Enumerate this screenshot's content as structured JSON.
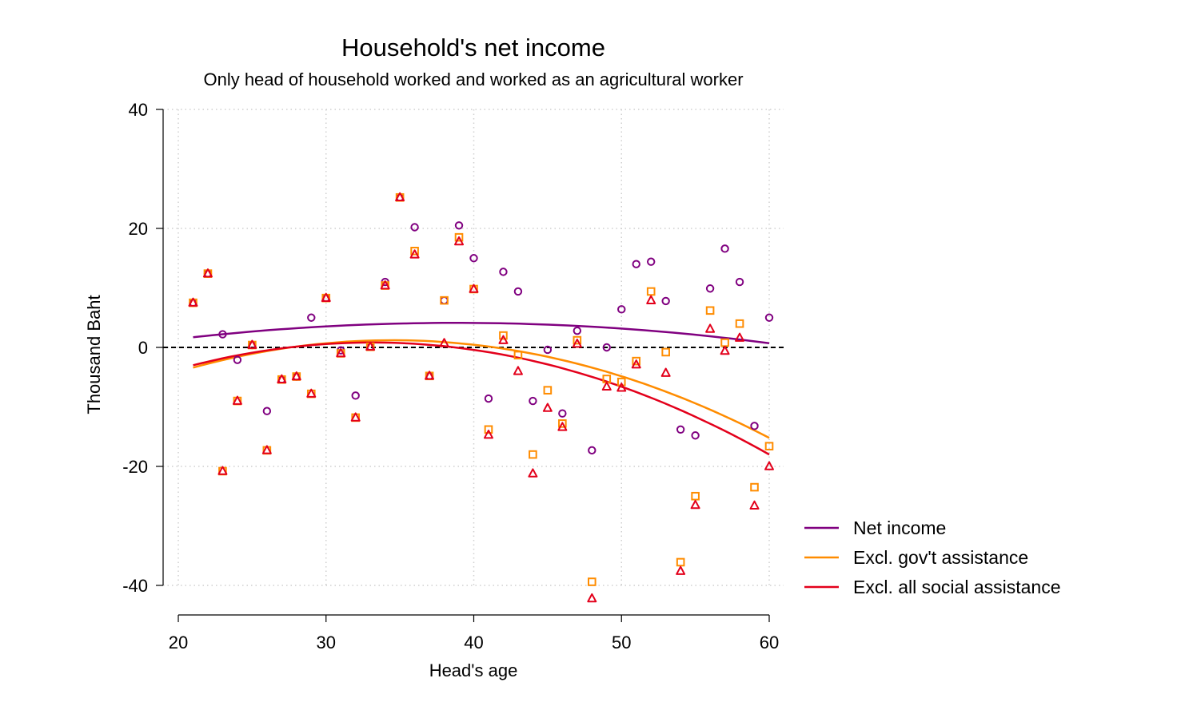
{
  "chart_data": {
    "type": "scatter",
    "title": "Household's net income",
    "subtitle": "Only head of household worked and worked as an agricultural worker",
    "xlabel": "Head's age",
    "ylabel": "Thousand Baht",
    "xlim": [
      20,
      60
    ],
    "ylim": [
      -40,
      40
    ],
    "xticks": [
      20,
      30,
      40,
      50,
      60
    ],
    "yticks": [
      -40,
      -20,
      0,
      20,
      40
    ],
    "grid": true,
    "reference_line": 0,
    "legend_position": "right",
    "series": [
      {
        "name": "Net income",
        "color": "#800080",
        "marker": "circle",
        "points": [
          [
            21,
            7.5
          ],
          [
            22,
            12.4
          ],
          [
            23,
            2.2
          ],
          [
            24,
            -2.1
          ],
          [
            25,
            0.4
          ],
          [
            26,
            -10.7
          ],
          [
            27,
            -5.4
          ],
          [
            28,
            -4.9
          ],
          [
            29,
            5.0
          ],
          [
            30,
            8.3
          ],
          [
            31,
            -0.5
          ],
          [
            32,
            -8.1
          ],
          [
            33,
            0.1
          ],
          [
            34,
            11.0
          ],
          [
            35,
            25.2
          ],
          [
            36,
            20.2
          ],
          [
            37,
            -4.8
          ],
          [
            38,
            7.9
          ],
          [
            39,
            20.5
          ],
          [
            40,
            15.0
          ],
          [
            41,
            -8.6
          ],
          [
            42,
            12.7
          ],
          [
            43,
            9.4
          ],
          [
            44,
            -9.0
          ],
          [
            45,
            -0.4
          ],
          [
            46,
            -11.1
          ],
          [
            47,
            2.8
          ],
          [
            48,
            -17.3
          ],
          [
            49,
            0.0
          ],
          [
            50,
            6.4
          ],
          [
            51,
            14.0
          ],
          [
            52,
            14.4
          ],
          [
            53,
            7.8
          ],
          [
            54,
            -13.8
          ],
          [
            55,
            -14.8
          ],
          [
            56,
            9.9
          ],
          [
            57,
            16.6
          ],
          [
            58,
            11.0
          ],
          [
            59,
            -13.2
          ],
          [
            60,
            5.0
          ]
        ],
        "fit": [
          1.7,
          4.1,
          0.7
        ]
      },
      {
        "name": "Excl. gov't assistance",
        "color": "#FF8C00",
        "marker": "square",
        "points": [
          [
            21,
            7.5
          ],
          [
            22,
            12.4
          ],
          [
            23,
            -20.8
          ],
          [
            24,
            -9.0
          ],
          [
            25,
            0.4
          ],
          [
            26,
            -17.3
          ],
          [
            27,
            -5.4
          ],
          [
            28,
            -4.9
          ],
          [
            29,
            -7.8
          ],
          [
            30,
            8.3
          ],
          [
            31,
            -1.0
          ],
          [
            32,
            -11.8
          ],
          [
            33,
            0.1
          ],
          [
            34,
            10.4
          ],
          [
            35,
            25.2
          ],
          [
            36,
            16.2
          ],
          [
            37,
            -4.8
          ],
          [
            38,
            7.9
          ],
          [
            39,
            18.5
          ],
          [
            40,
            9.8
          ],
          [
            41,
            -13.8
          ],
          [
            42,
            2.0
          ],
          [
            43,
            -1.3
          ],
          [
            44,
            -18.0
          ],
          [
            45,
            -7.2
          ],
          [
            46,
            -12.8
          ],
          [
            47,
            1.2
          ],
          [
            48,
            -39.4
          ],
          [
            49,
            -5.3
          ],
          [
            50,
            -5.8
          ],
          [
            51,
            -2.3
          ],
          [
            52,
            9.4
          ],
          [
            53,
            -0.8
          ],
          [
            54,
            -36.1
          ],
          [
            55,
            -25.0
          ],
          [
            56,
            6.2
          ],
          [
            57,
            0.8
          ],
          [
            58,
            4.0
          ],
          [
            59,
            -23.5
          ],
          [
            60,
            -16.6
          ]
        ],
        "fit": [
          -3.4,
          0.3,
          -15.2
        ]
      },
      {
        "name": "Excl. all social assistance",
        "color": "#E3001B",
        "marker": "triangle",
        "points": [
          [
            21,
            7.5
          ],
          [
            22,
            12.4
          ],
          [
            23,
            -20.8
          ],
          [
            24,
            -9.0
          ],
          [
            25,
            0.4
          ],
          [
            26,
            -17.3
          ],
          [
            27,
            -5.4
          ],
          [
            28,
            -4.9
          ],
          [
            29,
            -7.8
          ],
          [
            30,
            8.3
          ],
          [
            31,
            -1.0
          ],
          [
            32,
            -11.8
          ],
          [
            33,
            0.1
          ],
          [
            34,
            10.4
          ],
          [
            35,
            25.2
          ],
          [
            36,
            15.6
          ],
          [
            37,
            -4.8
          ],
          [
            38,
            0.7
          ],
          [
            39,
            17.8
          ],
          [
            40,
            9.8
          ],
          [
            41,
            -14.7
          ],
          [
            42,
            1.2
          ],
          [
            43,
            -4.0
          ],
          [
            44,
            -21.2
          ],
          [
            45,
            -10.2
          ],
          [
            46,
            -13.4
          ],
          [
            47,
            0.6
          ],
          [
            48,
            -42.2
          ],
          [
            49,
            -6.6
          ],
          [
            50,
            -6.8
          ],
          [
            51,
            -2.9
          ],
          [
            52,
            7.9
          ],
          [
            53,
            -4.3
          ],
          [
            54,
            -37.6
          ],
          [
            55,
            -26.5
          ],
          [
            56,
            3.1
          ],
          [
            57,
            -0.6
          ],
          [
            58,
            1.6
          ],
          [
            59,
            -26.6
          ],
          [
            60,
            -20.0
          ]
        ],
        "fit": [
          -3.0,
          -0.6,
          -18.0
        ]
      }
    ]
  }
}
